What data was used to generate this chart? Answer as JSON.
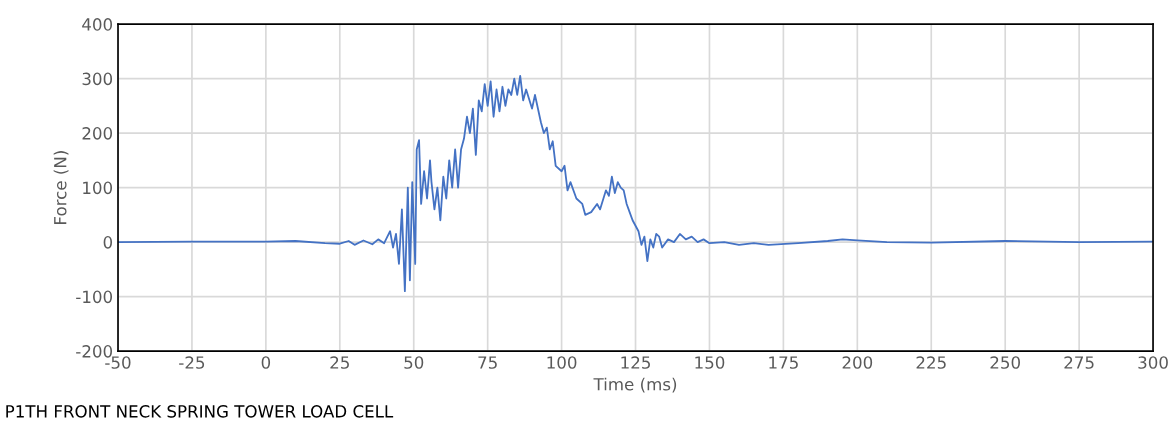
{
  "chart_data": {
    "type": "line",
    "xlabel": "Time (ms)",
    "ylabel": "Force (N)",
    "annotations": [
      "P1TH FRONT NECK SPRING TOWER LOAD CELL"
    ],
    "xlim": [
      -50,
      300
    ],
    "xticks": [
      -50,
      -25,
      0,
      25,
      50,
      75,
      100,
      125,
      150,
      175,
      200,
      225,
      250,
      275,
      300
    ],
    "ylim": [
      -200,
      400
    ],
    "yticks": [
      -200,
      -100,
      0,
      100,
      200,
      300,
      400
    ],
    "grid": true,
    "legend": false,
    "marker": "none",
    "line_style": "solid",
    "series": [
      {
        "color": "#4472c4",
        "x": [
          -50,
          -25,
          0,
          10,
          20,
          25,
          28,
          30,
          33,
          36,
          38,
          40,
          42,
          43,
          44,
          45,
          46,
          47,
          48,
          48.7,
          49.5,
          50.5,
          51,
          51.8,
          52.5,
          53.5,
          54.5,
          55.5,
          56,
          57,
          58,
          59,
          60,
          61,
          62,
          63,
          64,
          65,
          66,
          67,
          68,
          69,
          70,
          71,
          72,
          73,
          74,
          75,
          76,
          77,
          78,
          79,
          80,
          81,
          82,
          83,
          84,
          85,
          86,
          87,
          88,
          90,
          91,
          93,
          94,
          95,
          96,
          97,
          98,
          100,
          101,
          102,
          103,
          105,
          107,
          108,
          110,
          112,
          113,
          115,
          116,
          117,
          118,
          119,
          120,
          121,
          122,
          123,
          124,
          126,
          127,
          128,
          129,
          130,
          131,
          132,
          133,
          134,
          136,
          138,
          140,
          142,
          144,
          146,
          148,
          150,
          155,
          160,
          165,
          170,
          180,
          190,
          195,
          200,
          210,
          225,
          250,
          275,
          300
        ],
        "values": [
          0,
          1,
          1,
          2,
          -2,
          -3,
          2,
          -5,
          3,
          -4,
          5,
          -2,
          20,
          -10,
          15,
          -40,
          60,
          -90,
          100,
          -70,
          110,
          -40,
          170,
          187,
          70,
          130,
          80,
          150,
          110,
          60,
          100,
          40,
          120,
          80,
          150,
          100,
          170,
          100,
          170,
          190,
          230,
          200,
          245,
          160,
          260,
          240,
          290,
          250,
          295,
          230,
          280,
          240,
          285,
          250,
          280,
          270,
          300,
          270,
          305,
          260,
          280,
          245,
          270,
          220,
          200,
          210,
          170,
          185,
          140,
          130,
          140,
          95,
          110,
          80,
          70,
          50,
          55,
          70,
          60,
          95,
          85,
          120,
          90,
          110,
          100,
          95,
          70,
          55,
          40,
          20,
          -5,
          10,
          -35,
          5,
          -10,
          15,
          10,
          -10,
          5,
          0,
          15,
          5,
          10,
          0,
          5,
          -2,
          0,
          -5,
          -2,
          -5,
          -2,
          2,
          5,
          3,
          0,
          -1,
          2,
          0,
          1
        ]
      }
    ]
  }
}
